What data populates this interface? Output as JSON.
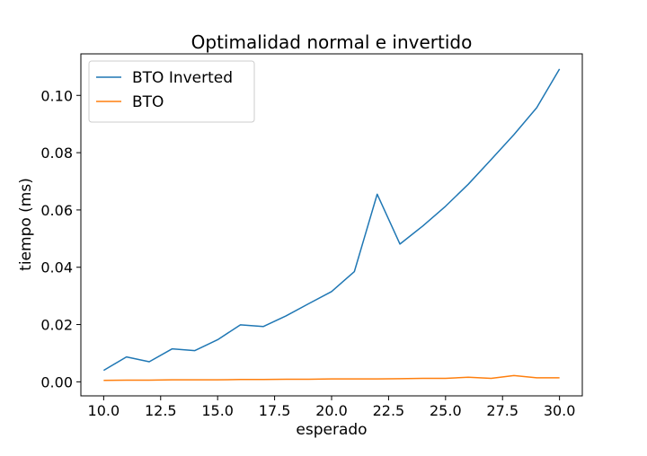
{
  "chart_data": {
    "type": "line",
    "title": "Optimalidad normal e invertido",
    "xlabel": "esperado",
    "ylabel": "tiempo (ms)",
    "xlim": [
      9.0,
      31.0
    ],
    "ylim": [
      -0.0049,
      0.1145
    ],
    "x_ticks": [
      10.0,
      12.5,
      15.0,
      17.5,
      20.0,
      22.5,
      25.0,
      27.5,
      30.0
    ],
    "x_tick_labels": [
      "10.0",
      "12.5",
      "15.0",
      "17.5",
      "20.0",
      "22.5",
      "25.0",
      "27.5",
      "30.0"
    ],
    "y_ticks": [
      0.0,
      0.02,
      0.04,
      0.06,
      0.08,
      0.1
    ],
    "y_tick_labels": [
      "0.00",
      "0.02",
      "0.04",
      "0.06",
      "0.08",
      "0.10"
    ],
    "grid": false,
    "legend_position": "upper-left",
    "x": [
      10,
      11,
      12,
      13,
      14,
      15,
      16,
      17,
      18,
      19,
      20,
      21,
      22,
      23,
      24,
      25,
      26,
      27,
      28,
      29,
      30
    ],
    "series": [
      {
        "name": "BTO Inverted",
        "color": "#1f77b4",
        "values": [
          0.004,
          0.0087,
          0.007,
          0.0115,
          0.0109,
          0.0147,
          0.0199,
          0.0193,
          0.023,
          0.0273,
          0.0315,
          0.0385,
          0.0655,
          0.0481,
          0.0544,
          0.0613,
          0.069,
          0.0776,
          0.0863,
          0.0957,
          0.1092
        ]
      },
      {
        "name": "BTO",
        "color": "#ff7f0e",
        "values": [
          0.0005,
          0.0006,
          0.0006,
          0.0007,
          0.0007,
          0.0007,
          0.0008,
          0.0008,
          0.0009,
          0.0009,
          0.001,
          0.001,
          0.001,
          0.0011,
          0.0012,
          0.0012,
          0.0016,
          0.0012,
          0.0022,
          0.0014,
          0.0014
        ]
      }
    ]
  }
}
